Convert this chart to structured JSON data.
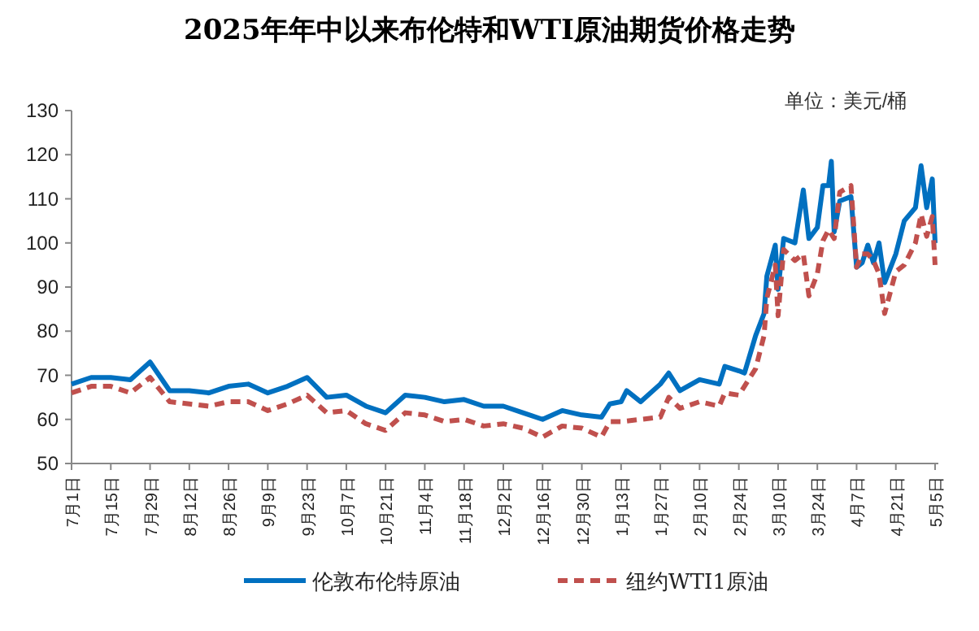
{
  "chart_data": {
    "type": "line",
    "title": "2025年年中以来布伦特和WTI原油期货价格走势",
    "annotations": [
      "单位：美元/桶"
    ],
    "xlim": [
      "2025-07-01",
      "2026-05-05"
    ],
    "ylim": [
      50,
      130
    ],
    "yticks": [
      50,
      60,
      70,
      80,
      90,
      100,
      110,
      120,
      130
    ],
    "xticks": [
      {
        "value": "2025-07-01",
        "label": "7月1日"
      },
      {
        "value": "2025-07-15",
        "label": "7月15日"
      },
      {
        "value": "2025-07-29",
        "label": "7月29日"
      },
      {
        "value": "2025-08-12",
        "label": "8月12日"
      },
      {
        "value": "2025-08-26",
        "label": "8月26日"
      },
      {
        "value": "2025-09-09",
        "label": "9月9日"
      },
      {
        "value": "2025-09-23",
        "label": "9月23日"
      },
      {
        "value": "2025-10-07",
        "label": "10月7日"
      },
      {
        "value": "2025-10-21",
        "label": "10月21日"
      },
      {
        "value": "2025-11-04",
        "label": "11月4日"
      },
      {
        "value": "2025-11-18",
        "label": "11月18日"
      },
      {
        "value": "2025-12-02",
        "label": "12月2日"
      },
      {
        "value": "2025-12-16",
        "label": "12月16日"
      },
      {
        "value": "2025-12-30",
        "label": "12月30日"
      },
      {
        "value": "2026-01-13",
        "label": "1月13日"
      },
      {
        "value": "2026-01-27",
        "label": "1月27日"
      },
      {
        "value": "2026-02-10",
        "label": "2月10日"
      },
      {
        "value": "2026-02-24",
        "label": "2月24日"
      },
      {
        "value": "2026-03-10",
        "label": "3月10日"
      },
      {
        "value": "2026-03-24",
        "label": "3月24日"
      },
      {
        "value": "2026-04-07",
        "label": "4月7日"
      },
      {
        "value": "2026-04-21",
        "label": "4月21日"
      },
      {
        "value": "2026-05-05",
        "label": "5月5日"
      }
    ],
    "legend": "bottom",
    "series": [
      {
        "name": "伦敦布伦特原油",
        "color": "#0070c0",
        "line_style": "solid",
        "x": [
          "2025-07-01",
          "2025-07-08",
          "2025-07-15",
          "2025-07-22",
          "2025-07-29",
          "2025-08-05",
          "2025-08-12",
          "2025-08-19",
          "2025-08-26",
          "2025-09-02",
          "2025-09-09",
          "2025-09-16",
          "2025-09-23",
          "2025-09-30",
          "2025-10-07",
          "2025-10-14",
          "2025-10-21",
          "2025-10-28",
          "2025-11-04",
          "2025-11-11",
          "2025-11-18",
          "2025-11-25",
          "2025-12-02",
          "2025-12-09",
          "2025-12-16",
          "2025-12-23",
          "2025-12-30",
          "2026-01-06",
          "2026-01-09",
          "2026-01-13",
          "2026-01-15",
          "2026-01-20",
          "2026-01-27",
          "2026-01-30",
          "2026-02-03",
          "2026-02-10",
          "2026-02-17",
          "2026-02-19",
          "2026-02-24",
          "2026-02-26",
          "2026-03-02",
          "2026-03-05",
          "2026-03-06",
          "2026-03-09",
          "2026-03-10",
          "2026-03-12",
          "2026-03-16",
          "2026-03-19",
          "2026-03-21",
          "2026-03-24",
          "2026-03-26",
          "2026-03-28",
          "2026-03-29",
          "2026-03-30",
          "2026-04-01",
          "2026-04-05",
          "2026-04-07",
          "2026-04-09",
          "2026-04-11",
          "2026-04-13",
          "2026-04-15",
          "2026-04-17",
          "2026-04-21",
          "2026-04-24",
          "2026-04-28",
          "2026-04-30",
          "2026-05-02",
          "2026-05-04",
          "2026-05-05"
        ],
        "values": [
          68,
          69.5,
          69.5,
          69,
          73,
          66.5,
          66.5,
          66,
          67.5,
          68,
          66,
          67.5,
          69.5,
          65,
          65.5,
          63,
          61.5,
          65.5,
          65,
          64,
          64.5,
          63,
          63,
          61.5,
          60,
          62,
          61,
          60.5,
          63.5,
          64,
          66.5,
          64,
          68,
          70.5,
          66.5,
          69,
          68,
          72,
          71,
          70.5,
          79,
          84,
          92.5,
          99.5,
          89.5,
          101,
          100,
          112,
          101,
          103.5,
          113,
          113,
          118.5,
          102.5,
          109.5,
          110.5,
          94.5,
          95.5,
          99.5,
          95.5,
          100,
          91,
          97.5,
          105,
          108,
          117.5,
          108,
          114.5,
          100
        ]
      },
      {
        "name": "纽约WTI1原油",
        "color": "#c0504d",
        "line_style": "dashed",
        "x": [
          "2025-07-01",
          "2025-07-08",
          "2025-07-15",
          "2025-07-22",
          "2025-07-29",
          "2025-08-05",
          "2025-08-12",
          "2025-08-19",
          "2025-08-26",
          "2025-09-02",
          "2025-09-09",
          "2025-09-16",
          "2025-09-23",
          "2025-09-30",
          "2025-10-07",
          "2025-10-14",
          "2025-10-21",
          "2025-10-28",
          "2025-11-04",
          "2025-11-11",
          "2025-11-18",
          "2025-11-25",
          "2025-12-02",
          "2025-12-09",
          "2025-12-16",
          "2025-12-23",
          "2025-12-30",
          "2026-01-06",
          "2026-01-09",
          "2026-01-13",
          "2026-01-20",
          "2026-01-27",
          "2026-01-30",
          "2026-02-03",
          "2026-02-10",
          "2026-02-17",
          "2026-02-19",
          "2026-02-24",
          "2026-03-02",
          "2026-03-05",
          "2026-03-06",
          "2026-03-09",
          "2026-03-10",
          "2026-03-12",
          "2026-03-16",
          "2026-03-19",
          "2026-03-21",
          "2026-03-24",
          "2026-03-26",
          "2026-03-28",
          "2026-03-30",
          "2026-04-01",
          "2026-04-05",
          "2026-04-07",
          "2026-04-09",
          "2026-04-11",
          "2026-04-13",
          "2026-04-15",
          "2026-04-17",
          "2026-04-21",
          "2026-04-24",
          "2026-04-28",
          "2026-04-30",
          "2026-05-02",
          "2026-05-04",
          "2026-05-05"
        ],
        "values": [
          66,
          67.5,
          67.5,
          66,
          69.5,
          64,
          63.5,
          63,
          64,
          64,
          62,
          63.5,
          65.5,
          61.5,
          62,
          59,
          57.5,
          61.5,
          61,
          59.5,
          60,
          58.5,
          59,
          58,
          56,
          58.5,
          58,
          56,
          59.5,
          59.5,
          60,
          60.5,
          65,
          62.5,
          64,
          63,
          66,
          65.5,
          71.5,
          79,
          87.5,
          95,
          83.5,
          98.5,
          96,
          97.5,
          88,
          93,
          100.5,
          103,
          101,
          111.5,
          113,
          94.5,
          97.5,
          97.5,
          96,
          93,
          84,
          93.5,
          95,
          100,
          106.5,
          101.5,
          106,
          95
        ]
      }
    ]
  }
}
